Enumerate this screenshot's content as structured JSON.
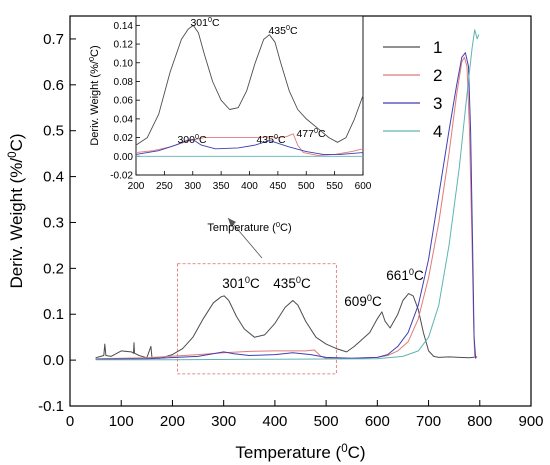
{
  "chart_data": [
    {
      "type": "line",
      "xlabel": "Temperature (°C)",
      "ylabel": "Deriv. Weight (%/°C)",
      "xlim": [
        0,
        900
      ],
      "ylim": [
        -0.1,
        0.75
      ],
      "xticks": [
        "0",
        "100",
        "200",
        "300",
        "400",
        "500",
        "600",
        "700",
        "800",
        "900"
      ],
      "yticks": [
        "-0.1",
        "0.0",
        "0.1",
        "0.2",
        "0.3",
        "0.4",
        "0.5",
        "0.6",
        "0.7"
      ],
      "legend_position": "top-right",
      "series": [
        {
          "name": "1",
          "color": "#4d4d4d",
          "points": [
            [
              50,
              0.005
            ],
            [
              60,
              0.008
            ],
            [
              66,
              0.01
            ],
            [
              68,
              0.035
            ],
            [
              70,
              0.01
            ],
            [
              80,
              0.008
            ],
            [
              100,
              0.02
            ],
            [
              120,
              0.018
            ],
            [
              124,
              0.015
            ],
            [
              125,
              0.038
            ],
            [
              126,
              0.015
            ],
            [
              135,
              0.01
            ],
            [
              150,
              0.005
            ],
            [
              158,
              0.03
            ],
            [
              160,
              0.005
            ],
            [
              175,
              0.004
            ],
            [
              200,
              0.012
            ],
            [
              220,
              0.025
            ],
            [
              240,
              0.05
            ],
            [
              260,
              0.09
            ],
            [
              280,
              0.125
            ],
            [
              295,
              0.138
            ],
            [
              301,
              0.14
            ],
            [
              310,
              0.13
            ],
            [
              325,
              0.095
            ],
            [
              340,
              0.068
            ],
            [
              360,
              0.05
            ],
            [
              380,
              0.055
            ],
            [
              400,
              0.08
            ],
            [
              420,
              0.115
            ],
            [
              435,
              0.13
            ],
            [
              445,
              0.12
            ],
            [
              460,
              0.085
            ],
            [
              480,
              0.05
            ],
            [
              500,
              0.035
            ],
            [
              520,
              0.025
            ],
            [
              540,
              0.018
            ],
            [
              555,
              0.03
            ],
            [
              570,
              0.045
            ],
            [
              585,
              0.06
            ],
            [
              600,
              0.09
            ],
            [
              609,
              0.105
            ],
            [
              615,
              0.085
            ],
            [
              625,
              0.07
            ],
            [
              640,
              0.1
            ],
            [
              650,
              0.13
            ],
            [
              661,
              0.145
            ],
            [
              670,
              0.14
            ],
            [
              680,
              0.11
            ],
            [
              690,
              0.06
            ],
            [
              700,
              0.02
            ],
            [
              710,
              0.008
            ],
            [
              720,
              0.006
            ],
            [
              740,
              0.007
            ],
            [
              760,
              0.006
            ],
            [
              780,
              0.005
            ],
            [
              795,
              0.007
            ]
          ]
        },
        {
          "name": "2",
          "color": "#e07a7a",
          "points": [
            [
              50,
              0.003
            ],
            [
              150,
              0.005
            ],
            [
              250,
              0.012
            ],
            [
              300,
              0.016
            ],
            [
              350,
              0.019
            ],
            [
              400,
              0.02
            ],
            [
              435,
              0.02
            ],
            [
              460,
              0.02
            ],
            [
              477,
              0.022
            ],
            [
              490,
              0.008
            ],
            [
              500,
              0.004
            ],
            [
              550,
              0.004
            ],
            [
              600,
              0.006
            ],
            [
              620,
              0.01
            ],
            [
              640,
              0.02
            ],
            [
              660,
              0.04
            ],
            [
              680,
              0.09
            ],
            [
              700,
              0.18
            ],
            [
              720,
              0.3
            ],
            [
              740,
              0.45
            ],
            [
              755,
              0.58
            ],
            [
              765,
              0.65
            ],
            [
              770,
              0.66
            ],
            [
              775,
              0.64
            ],
            [
              780,
              0.5
            ],
            [
              785,
              0.25
            ],
            [
              788,
              0.08
            ],
            [
              790,
              0.005
            ]
          ]
        },
        {
          "name": "3",
          "color": "#3f3fb3",
          "points": [
            [
              50,
              0.002
            ],
            [
              150,
              0.003
            ],
            [
              250,
              0.008
            ],
            [
              300,
              0.018
            ],
            [
              320,
              0.014
            ],
            [
              350,
              0.01
            ],
            [
              400,
              0.012
            ],
            [
              435,
              0.016
            ],
            [
              470,
              0.012
            ],
            [
              500,
              0.006
            ],
            [
              550,
              0.004
            ],
            [
              600,
              0.006
            ],
            [
              620,
              0.012
            ],
            [
              640,
              0.03
            ],
            [
              660,
              0.06
            ],
            [
              680,
              0.12
            ],
            [
              700,
              0.22
            ],
            [
              720,
              0.36
            ],
            [
              740,
              0.5
            ],
            [
              755,
              0.6
            ],
            [
              765,
              0.66
            ],
            [
              772,
              0.67
            ],
            [
              778,
              0.64
            ],
            [
              782,
              0.5
            ],
            [
              786,
              0.25
            ],
            [
              789,
              0.05
            ],
            [
              792,
              0.003
            ]
          ]
        },
        {
          "name": "4",
          "color": "#5fb3b3",
          "points": [
            [
              50,
              0.001
            ],
            [
              200,
              0.001
            ],
            [
              400,
              0.002
            ],
            [
              600,
              0.003
            ],
            [
              650,
              0.008
            ],
            [
              680,
              0.02
            ],
            [
              700,
              0.05
            ],
            [
              720,
              0.12
            ],
            [
              740,
              0.25
            ],
            [
              760,
              0.42
            ],
            [
              775,
              0.58
            ],
            [
              785,
              0.68
            ],
            [
              790,
              0.72
            ],
            [
              795,
              0.7
            ],
            [
              798,
              0.71
            ]
          ]
        }
      ],
      "annotations": [
        {
          "text": "301°C",
          "x": 301
        },
        {
          "text": "435°C",
          "x": 435
        },
        {
          "text": "609°C",
          "x": 609
        },
        {
          "text": "661°C",
          "x": 661
        }
      ],
      "zoom_box": {
        "x": [
          210,
          520
        ],
        "y": [
          -0.03,
          0.21
        ]
      }
    },
    {
      "type": "line",
      "role": "inset",
      "xlabel": "Temperature (°C)",
      "ylabel": "Deriv. Weight (%/°C)",
      "xlim": [
        200,
        600
      ],
      "ylim": [
        -0.02,
        0.15
      ],
      "xticks": [
        "200",
        "250",
        "300",
        "350",
        "400",
        "450",
        "500",
        "550",
        "600"
      ],
      "yticks": [
        "-0.02",
        "0.00",
        "0.02",
        "0.04",
        "0.06",
        "0.08",
        "0.10",
        "0.12",
        "0.14"
      ],
      "series": [
        {
          "name": "1",
          "color": "#4d4d4d",
          "points": [
            [
              200,
              0.012
            ],
            [
              220,
              0.02
            ],
            [
              240,
              0.045
            ],
            [
              260,
              0.09
            ],
            [
              280,
              0.125
            ],
            [
              292,
              0.136
            ],
            [
              301,
              0.14
            ],
            [
              310,
              0.132
            ],
            [
              320,
              0.11
            ],
            [
              335,
              0.08
            ],
            [
              350,
              0.06
            ],
            [
              365,
              0.05
            ],
            [
              380,
              0.052
            ],
            [
              395,
              0.07
            ],
            [
              410,
              0.1
            ],
            [
              425,
              0.125
            ],
            [
              435,
              0.13
            ],
            [
              445,
              0.122
            ],
            [
              455,
              0.1
            ],
            [
              470,
              0.07
            ],
            [
              485,
              0.05
            ],
            [
              500,
              0.04
            ],
            [
              520,
              0.03
            ],
            [
              540,
              0.02
            ],
            [
              555,
              0.015
            ],
            [
              570,
              0.02
            ],
            [
              585,
              0.04
            ],
            [
              600,
              0.065
            ]
          ]
        },
        {
          "name": "2",
          "color": "#e07a7a",
          "points": [
            [
              200,
              0.004
            ],
            [
              230,
              0.006
            ],
            [
              260,
              0.01
            ],
            [
              290,
              0.016
            ],
            [
              320,
              0.02
            ],
            [
              350,
              0.02
            ],
            [
              380,
              0.02
            ],
            [
              410,
              0.02
            ],
            [
              435,
              0.021
            ],
            [
              450,
              0.02
            ],
            [
              465,
              0.021
            ],
            [
              477,
              0.024
            ],
            [
              485,
              0.012
            ],
            [
              495,
              0.004
            ],
            [
              520,
              0.001
            ],
            [
              550,
              0.002
            ],
            [
              580,
              0.005
            ],
            [
              600,
              0.008
            ]
          ]
        },
        {
          "name": "3",
          "color": "#3f3fb3",
          "points": [
            [
              200,
              0.002
            ],
            [
              240,
              0.006
            ],
            [
              270,
              0.012
            ],
            [
              290,
              0.017
            ],
            [
              300,
              0.018
            ],
            [
              315,
              0.012
            ],
            [
              340,
              0.008
            ],
            [
              380,
              0.009
            ],
            [
              410,
              0.012
            ],
            [
              425,
              0.015
            ],
            [
              435,
              0.017
            ],
            [
              445,
              0.015
            ],
            [
              470,
              0.01
            ],
            [
              500,
              0.005
            ],
            [
              530,
              0.002
            ],
            [
              560,
              0.002
            ],
            [
              600,
              0.004
            ]
          ]
        },
        {
          "name": "4",
          "color": "#5fb3b3",
          "points": [
            [
              200,
              0.0
            ],
            [
              300,
              0.0
            ],
            [
              400,
              0.0
            ],
            [
              500,
              0.0
            ],
            [
              600,
              0.0
            ]
          ]
        }
      ],
      "annotations": [
        {
          "text": "301°C",
          "x": 301
        },
        {
          "text": "435°C",
          "x": 435
        },
        {
          "text": "300°C",
          "x": 300
        },
        {
          "text": "435°C",
          "x": 435
        },
        {
          "text": "477°C",
          "x": 477
        }
      ]
    }
  ]
}
